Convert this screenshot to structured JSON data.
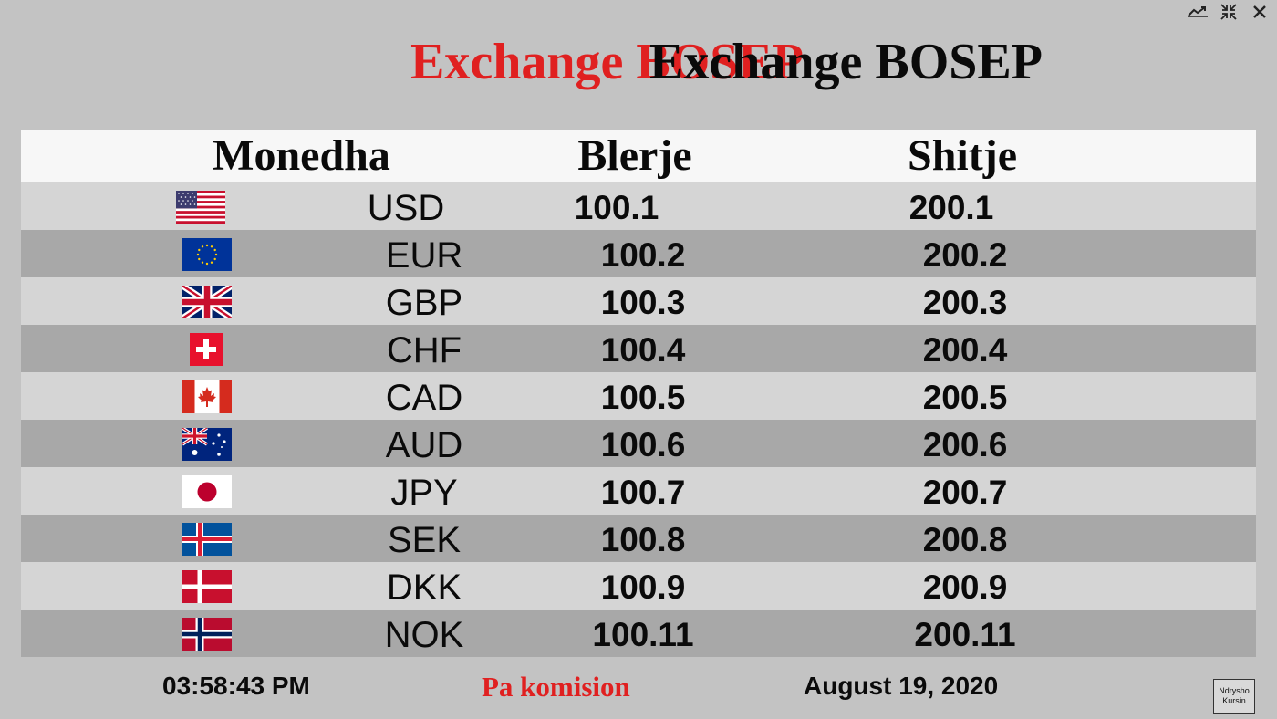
{
  "window": {
    "restore_icon": "restore-icon",
    "minimize_icon": "collapse-icon",
    "close_icon": "close-icon"
  },
  "title": {
    "red_text": "Exchange BOSEP",
    "black_text": "Exchange BOSEP"
  },
  "table": {
    "headers": {
      "currency": "Monedha",
      "buy": "Blerje",
      "sell": "Shitje"
    },
    "rows": [
      {
        "flag": "us-flag-icon",
        "code": "USD",
        "buy": "100.1",
        "sell": "200.1"
      },
      {
        "flag": "eu-flag-icon",
        "code": "EUR",
        "buy": "100.2",
        "sell": "200.2"
      },
      {
        "flag": "uk-flag-icon",
        "code": "GBP",
        "buy": "100.3",
        "sell": "200.3"
      },
      {
        "flag": "swiss-flag-icon",
        "code": "CHF",
        "buy": "100.4",
        "sell": "200.4"
      },
      {
        "flag": "canada-flag-icon",
        "code": "CAD",
        "buy": "100.5",
        "sell": "200.5"
      },
      {
        "flag": "australia-flag-icon",
        "code": "AUD",
        "buy": "100.6",
        "sell": "200.6"
      },
      {
        "flag": "japan-flag-icon",
        "code": "JPY",
        "buy": "100.7",
        "sell": "200.7"
      },
      {
        "flag": "iceland-flag-icon",
        "code": "SEK",
        "buy": "100.8",
        "sell": "200.8"
      },
      {
        "flag": "denmark-flag-icon",
        "code": "DKK",
        "buy": "100.9",
        "sell": "200.9"
      },
      {
        "flag": "norway-flag-icon",
        "code": "NOK",
        "buy": "100.11",
        "sell": "200.11"
      }
    ]
  },
  "footer": {
    "time": "03:58:43 PM",
    "note": "Pa komision",
    "date": "August 19, 2020",
    "change_button": {
      "line1": "Ndrysho",
      "line2": "Kursin"
    }
  },
  "colors": {
    "background": "#c3c3c3",
    "accent_red": "#e02020",
    "header_bg": "#f7f7f7",
    "row_light": "#d5d5d5",
    "row_dark": "#a8a8a8"
  }
}
